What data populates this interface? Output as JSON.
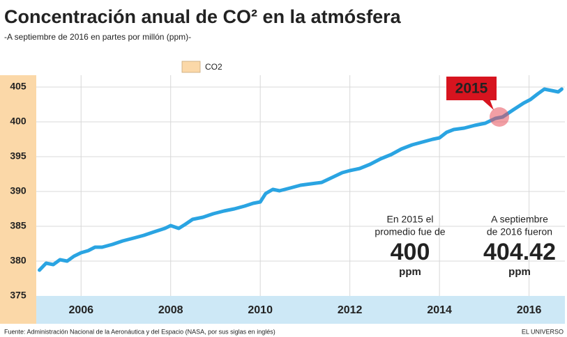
{
  "chart_data": {
    "type": "line",
    "title": "Concentración anual de CO² en la atmósfera",
    "subtitle": "-A septiembre de 2016 en partes por millón (ppm)-",
    "source": "Fuente: Administración Nacional de la Aeronáutica y del Espacio (NASA, por sus siglas en inglés)",
    "credit": "EL UNIVERSO",
    "x": [
      2005.07,
      2005.22,
      2005.38,
      2005.53,
      2005.69,
      2005.84,
      2006.0,
      2006.16,
      2006.31,
      2006.47,
      2006.7,
      2006.93,
      2007.17,
      2007.4,
      2007.63,
      2007.87,
      2008.0,
      2008.18,
      2008.33,
      2008.49,
      2008.72,
      2008.95,
      2009.19,
      2009.42,
      2009.65,
      2009.84,
      2010.0,
      2010.12,
      2010.28,
      2010.43,
      2010.67,
      2010.9,
      2011.13,
      2011.37,
      2011.6,
      2011.83,
      2012.0,
      2012.22,
      2012.45,
      2012.69,
      2012.92,
      2013.15,
      2013.39,
      2013.62,
      2013.85,
      2014.0,
      2014.16,
      2014.32,
      2014.55,
      2014.79,
      2015.02,
      2015.25,
      2015.41,
      2015.64,
      2015.88,
      2016.03,
      2016.19,
      2016.34,
      2016.5,
      2016.65,
      2016.73
    ],
    "series": [
      {
        "name": "CO2",
        "color": "#2aa4e2",
        "values": [
          378.7,
          379.7,
          379.5,
          380.2,
          380.0,
          380.7,
          381.2,
          381.5,
          382.0,
          382.0,
          382.4,
          382.9,
          383.3,
          383.7,
          384.2,
          384.7,
          385.1,
          384.7,
          385.3,
          386.0,
          386.3,
          386.8,
          387.2,
          387.5,
          387.9,
          388.3,
          388.5,
          389.7,
          390.3,
          390.1,
          390.5,
          390.9,
          391.1,
          391.3,
          392.0,
          392.7,
          393.0,
          393.3,
          393.9,
          394.7,
          395.3,
          396.1,
          396.7,
          397.1,
          397.5,
          397.7,
          398.5,
          398.9,
          399.1,
          399.5,
          399.8,
          400.5,
          400.7,
          401.7,
          402.7,
          403.2,
          404.0,
          404.7,
          404.5,
          404.3,
          404.7
        ]
      }
    ],
    "xlim": [
      2005,
      2016.8
    ],
    "xticks": [
      2006,
      2008,
      2010,
      2012,
      2014,
      2016
    ],
    "ylim": [
      375,
      406.7
    ],
    "yticks": [
      375,
      380,
      385,
      390,
      395,
      400,
      405
    ],
    "grid": true,
    "legend": "top",
    "annotations": {
      "callout": "2015",
      "left": [
        "En 2015 el",
        "promedio fue de",
        "400",
        "ppm"
      ],
      "right": [
        "A septiembre",
        "de 2016 fueron",
        "404.42",
        "ppm"
      ]
    }
  }
}
